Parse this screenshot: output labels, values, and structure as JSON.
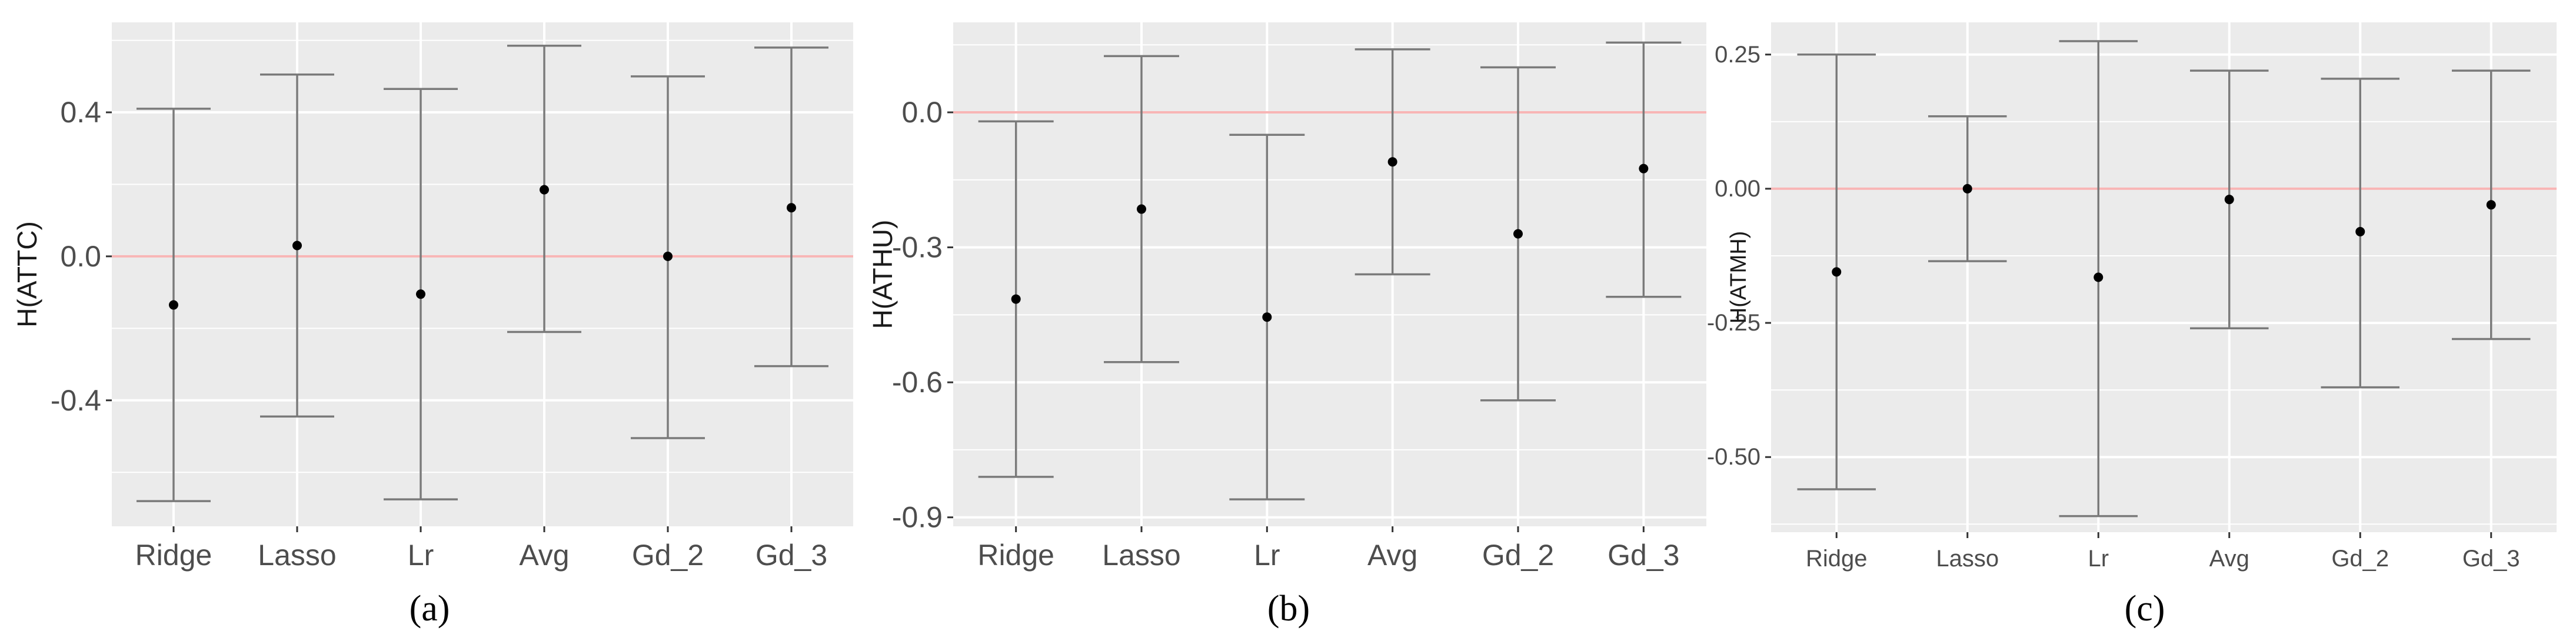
{
  "chart_data": [
    {
      "type": "errorbar",
      "caption": "(a)",
      "ylabel": "H(ATTC)",
      "xlabel": "",
      "categories": [
        "Ridge",
        "Lasso",
        "Lr",
        "Avg",
        "Gd_2",
        "Gd_3"
      ],
      "points": [
        {
          "label": "Ridge",
          "estimate": -0.135,
          "lower": -0.68,
          "upper": 0.41
        },
        {
          "label": "Lasso",
          "estimate": 0.03,
          "lower": -0.445,
          "upper": 0.505
        },
        {
          "label": "Lr",
          "estimate": -0.105,
          "lower": -0.675,
          "upper": 0.465
        },
        {
          "label": "Avg",
          "estimate": 0.185,
          "lower": -0.21,
          "upper": 0.585
        },
        {
          "label": "Gd_2",
          "estimate": 0.0,
          "lower": -0.505,
          "upper": 0.5
        },
        {
          "label": "Gd_3",
          "estimate": 0.135,
          "lower": -0.305,
          "upper": 0.58
        }
      ],
      "yticks": [
        0.4,
        0.0,
        -0.4
      ],
      "ytick_labels": [
        "0.4",
        "0.0",
        "-0.4"
      ],
      "ylim": [
        -0.75,
        0.65
      ],
      "reference_line": 0,
      "grid": true
    },
    {
      "type": "errorbar",
      "caption": "(b)",
      "ylabel": "H(ATHU)",
      "xlabel": "",
      "categories": [
        "Ridge",
        "Lasso",
        "Lr",
        "Avg",
        "Gd_2",
        "Gd_3"
      ],
      "points": [
        {
          "label": "Ridge",
          "estimate": -0.415,
          "lower": -0.81,
          "upper": -0.02
        },
        {
          "label": "Lasso",
          "estimate": -0.215,
          "lower": -0.555,
          "upper": 0.125
        },
        {
          "label": "Lr",
          "estimate": -0.455,
          "lower": -0.86,
          "upper": -0.05
        },
        {
          "label": "Avg",
          "estimate": -0.11,
          "lower": -0.36,
          "upper": 0.14
        },
        {
          "label": "Gd_2",
          "estimate": -0.27,
          "lower": -0.64,
          "upper": 0.1
        },
        {
          "label": "Gd_3",
          "estimate": -0.125,
          "lower": -0.41,
          "upper": 0.155
        }
      ],
      "yticks": [
        0.0,
        -0.3,
        -0.6,
        -0.9
      ],
      "ytick_labels": [
        "0.0",
        "-0.3",
        "-0.6",
        "-0.9"
      ],
      "ylim": [
        -0.92,
        0.2
      ],
      "reference_line": 0,
      "grid": true
    },
    {
      "type": "errorbar",
      "caption": "(c)",
      "ylabel": "H(ATMH)",
      "xlabel": "",
      "categories": [
        "Ridge",
        "Lasso",
        "Lr",
        "Avg",
        "Gd_2",
        "Gd_3"
      ],
      "points": [
        {
          "label": "Ridge",
          "estimate": -0.155,
          "lower": -0.56,
          "upper": 0.25
        },
        {
          "label": "Lasso",
          "estimate": 0.0,
          "lower": -0.135,
          "upper": 0.135
        },
        {
          "label": "Lr",
          "estimate": -0.165,
          "lower": -0.61,
          "upper": 0.275
        },
        {
          "label": "Avg",
          "estimate": -0.02,
          "lower": -0.26,
          "upper": 0.22
        },
        {
          "label": "Gd_2",
          "estimate": -0.08,
          "lower": -0.37,
          "upper": 0.205
        },
        {
          "label": "Gd_3",
          "estimate": -0.03,
          "lower": -0.28,
          "upper": 0.22
        }
      ],
      "yticks": [
        0.25,
        0.0,
        -0.25,
        -0.5
      ],
      "ytick_labels": [
        "0.25",
        "0.00",
        "-0.25",
        "-0.50"
      ],
      "ylim": [
        -0.64,
        0.31
      ],
      "reference_line": 0,
      "grid": true
    }
  ],
  "colors": {
    "panel_background": "#ebebeb",
    "grid": "#ffffff",
    "reference_line": "#f8b5b5",
    "error_bar": "#7a7a7a",
    "point": "#000000",
    "tick_text": "#4d4d4d",
    "axis_title": "#1a1a1a"
  }
}
